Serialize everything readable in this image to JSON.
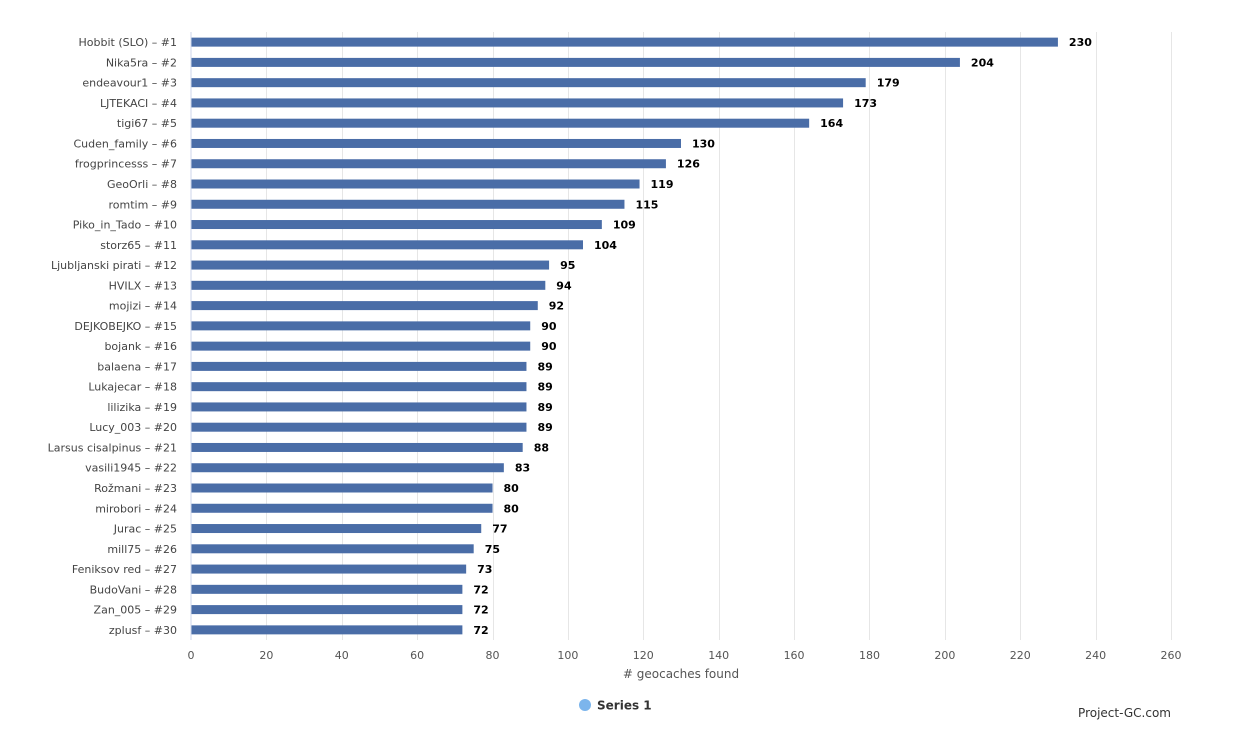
{
  "chart_data": {
    "type": "bar",
    "orientation": "horizontal",
    "categories": [
      "Hobbit (SLO) – #1",
      "Nika5ra – #2",
      "endeavour1 – #3",
      "LJTEKACI – #4",
      "tigi67 – #5",
      "Cuden_family – #6",
      "frogprincesss – #7",
      "GeoOrli – #8",
      "romtim – #9",
      "Piko_in_Tado – #10",
      "storz65 – #11",
      "Ljubljanski pirati – #12",
      "HVILX – #13",
      "mojizi – #14",
      "DEJKOBEJKO – #15",
      "bojank – #16",
      "balaena – #17",
      "Lukajecar – #18",
      "lilizika – #19",
      "Lucy_003 – #20",
      "Larsus cisalpinus – #21",
      "vasili1945 – #22",
      "Rožmani – #23",
      "mirobori – #24",
      "Jurac – #25",
      "mill75 – #26",
      "Feniksov red – #27",
      "BudoVani – #28",
      "Zan_005 – #29",
      "zplusf – #30"
    ],
    "series": [
      {
        "name": "Series 1",
        "values": [
          230,
          204,
          179,
          173,
          164,
          130,
          126,
          119,
          115,
          109,
          104,
          95,
          94,
          92,
          90,
          90,
          89,
          89,
          89,
          89,
          88,
          83,
          80,
          80,
          77,
          75,
          73,
          72,
          72,
          72
        ]
      }
    ],
    "xlabel": "# geocaches found",
    "xlim": [
      0,
      260
    ],
    "xticks": [
      0,
      20,
      40,
      60,
      80,
      100,
      120,
      140,
      160,
      180,
      200,
      220,
      240,
      260
    ],
    "grid": true,
    "legend_position": "bottom-center"
  },
  "colors": {
    "bar": "#4a6da7",
    "legend_marker": "#7cb5ec",
    "grid": "#e6e6e6"
  },
  "credits": "Project-GC.com"
}
